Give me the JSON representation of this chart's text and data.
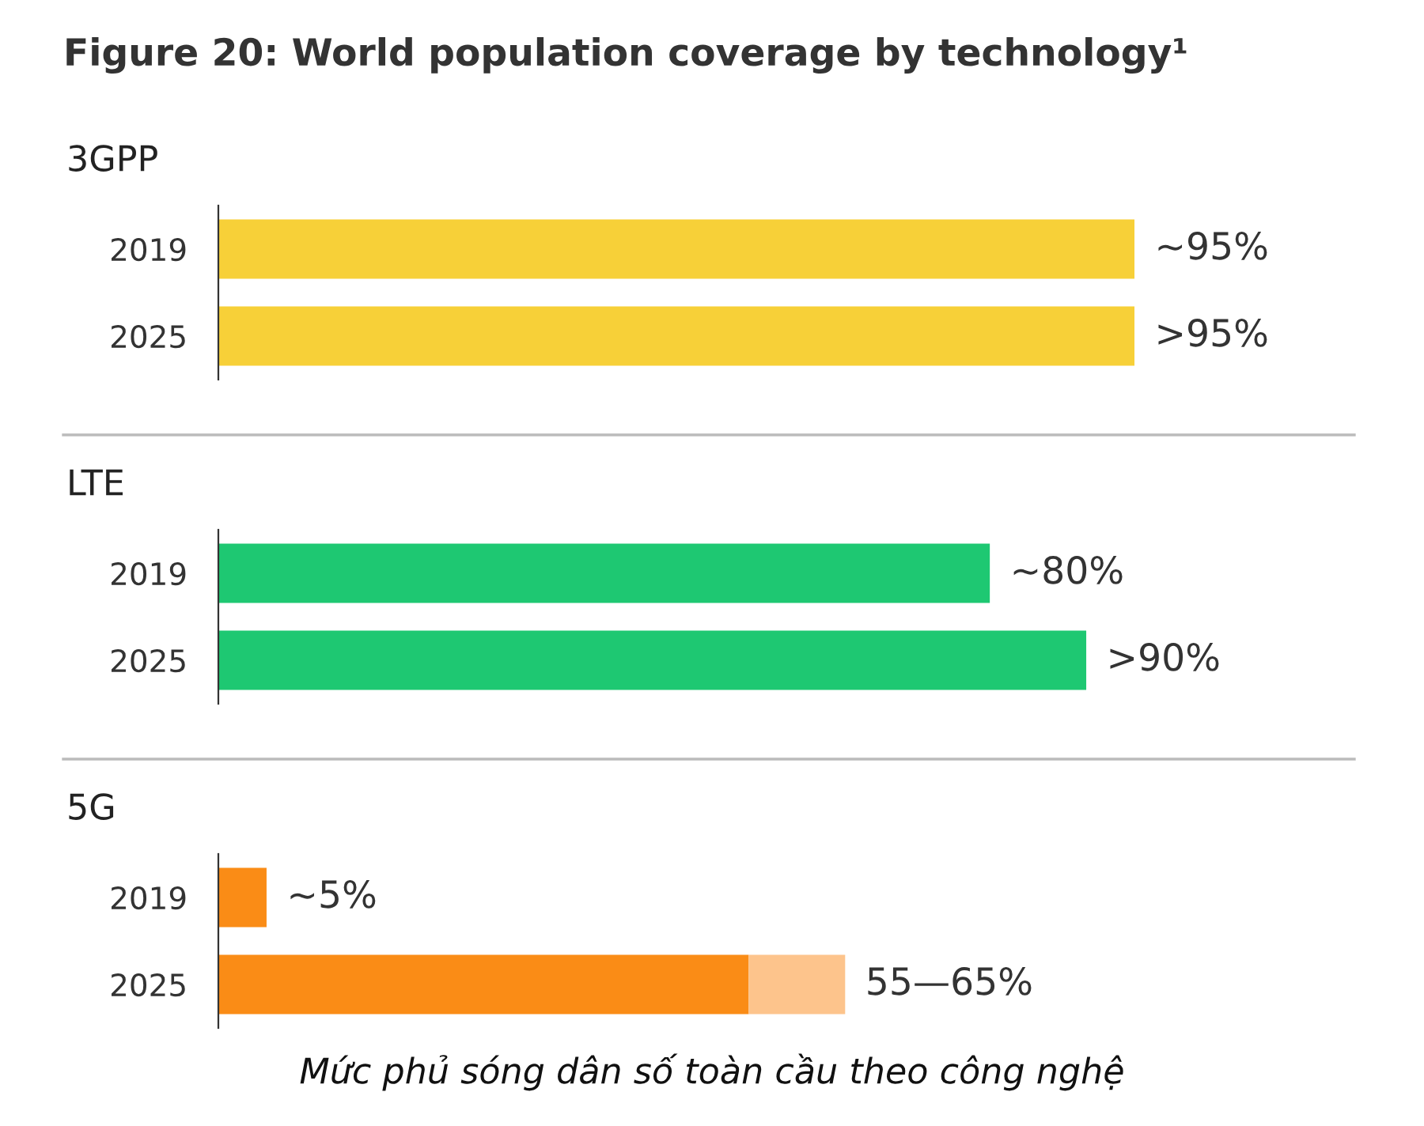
{
  "chart_data": [
    {
      "type": "bar",
      "orientation": "horizontal",
      "title": "3GPP",
      "annotations": [
        "Figure 20: World population coverage by technology¹"
      ],
      "categories": [
        "2019",
        "2025"
      ],
      "series": [
        {
          "color": "#f7d038",
          "values": [
            95,
            95
          ],
          "value_labels": [
            "~95%",
            ">95%"
          ]
        }
      ]
    },
    {
      "type": "bar",
      "orientation": "horizontal",
      "title": "LTE",
      "categories": [
        "2019",
        "2025"
      ],
      "series": [
        {
          "color": "#1ec872",
          "values": [
            80,
            90
          ],
          "value_labels": [
            "~80%",
            ">90%"
          ]
        }
      ]
    },
    {
      "type": "bar",
      "orientation": "horizontal",
      "stacked": true,
      "title": "5G",
      "annotations": [
        "Mức phủ sóng dân số toàn cầu theo công nghệ"
      ],
      "categories": [
        "2019",
        "2025"
      ],
      "series": [
        {
          "color": "#fa8c16",
          "values": [
            5,
            55
          ],
          "value_labels": [
            "~5%",
            "55—65%"
          ]
        },
        {
          "color": "#fdc48c",
          "values": [
            null,
            10
          ]
        }
      ]
    }
  ]
}
